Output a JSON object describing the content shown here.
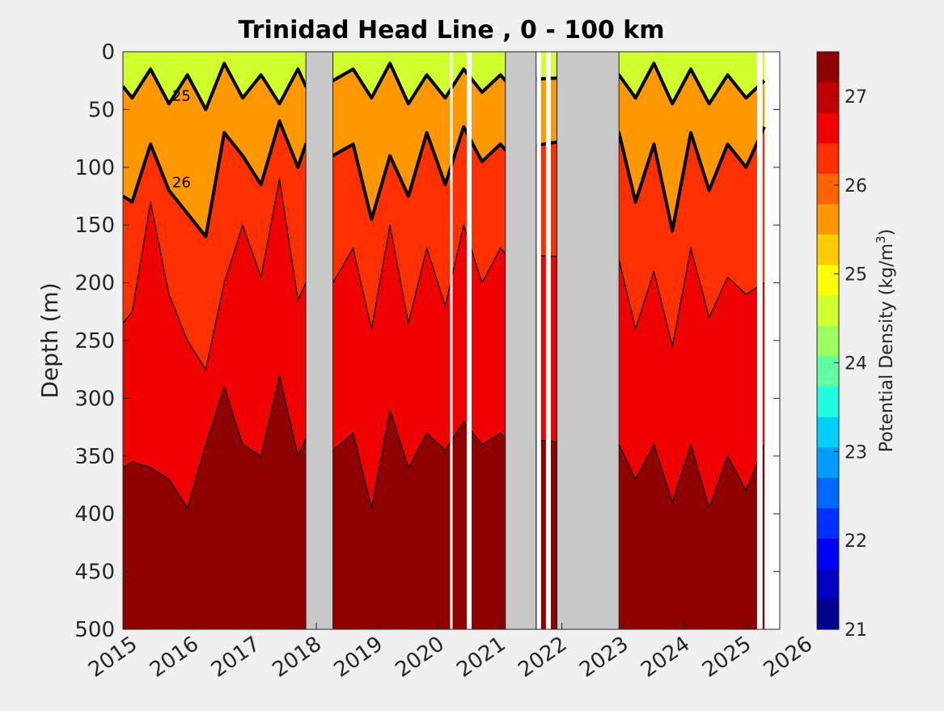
{
  "chart_data": {
    "type": "heatmap",
    "title": "Trinidad Head Line , 0 - 100 km",
    "xlabel": "",
    "ylabel": "Depth (m)",
    "xlim": [
      2014.85,
      2025.55
    ],
    "x_ticks": [
      2015,
      2016,
      2017,
      2018,
      2019,
      2020,
      2021,
      2022,
      2023,
      2024,
      2025,
      2026
    ],
    "x_tick_labels": [
      "2015",
      "2016",
      "2017",
      "2018",
      "2019",
      "2020",
      "2021",
      "2022",
      "2023",
      "2024",
      "2025",
      "2026"
    ],
    "ylim": [
      500,
      0
    ],
    "y_reversed": true,
    "y_ticks": [
      0,
      50,
      100,
      150,
      200,
      250,
      300,
      350,
      400,
      450,
      500
    ],
    "y_tick_labels": [
      "0",
      "50",
      "100",
      "150",
      "200",
      "250",
      "300",
      "350",
      "400",
      "450",
      "500"
    ],
    "colorbar": {
      "label": "Potential Density (kg/m",
      "label_superscript": "3",
      "label_close": ")",
      "range": [
        21,
        27.5
      ],
      "ticks": [
        21,
        22,
        23,
        24,
        25,
        26,
        27
      ],
      "tick_labels": [
        "21",
        "22",
        "23",
        "24",
        "25",
        "26",
        "27"
      ],
      "colormap": [
        "#00008f",
        "#0000c0",
        "#0000f5",
        "#0030ff",
        "#0068ff",
        "#009cff",
        "#00d0ff",
        "#20ffe0",
        "#60ffa0",
        "#9cff62",
        "#d0ff2e",
        "#ffff00",
        "#ffcc00",
        "#ff9800",
        "#ff6400",
        "#ff3000",
        "#f00000",
        "#c00000",
        "#8f0000"
      ]
    },
    "no_data_intervals": [
      [
        2017.83,
        2018.27
      ],
      [
        2021.08,
        2021.58
      ],
      [
        2021.92,
        2022.93
      ]
    ],
    "blank_intervals": [
      [
        2020.18,
        2020.22
      ],
      [
        2020.45,
        2020.53
      ],
      [
        2021.59,
        2021.66
      ],
      [
        2021.74,
        2021.82
      ],
      [
        2025.18,
        2025.27
      ],
      [
        2025.36,
        2025.55
      ]
    ],
    "isopycnals": [
      {
        "density": 25,
        "label": "25",
        "emphasis": "bold",
        "x": [
          2014.85,
          2015.0,
          2015.3,
          2015.6,
          2015.9,
          2016.2,
          2016.5,
          2016.8,
          2017.1,
          2017.4,
          2017.7,
          2017.83,
          2018.27,
          2018.6,
          2018.9,
          2019.2,
          2019.5,
          2019.8,
          2020.1,
          2020.4,
          2020.7,
          2021.0,
          2021.08,
          2022.93,
          2023.2,
          2023.5,
          2023.8,
          2024.1,
          2024.4,
          2024.7,
          2025.0,
          2025.3
        ],
        "y": [
          30,
          40,
          15,
          45,
          20,
          50,
          10,
          40,
          20,
          45,
          15,
          30,
          25,
          15,
          40,
          10,
          45,
          20,
          40,
          15,
          35,
          20,
          25,
          20,
          40,
          10,
          45,
          15,
          45,
          20,
          40,
          25
        ]
      },
      {
        "density": 26,
        "label": "26",
        "emphasis": "bold",
        "x": [
          2014.85,
          2015.0,
          2015.3,
          2015.6,
          2015.9,
          2016.2,
          2016.5,
          2016.8,
          2017.1,
          2017.4,
          2017.7,
          2017.83,
          2018.27,
          2018.6,
          2018.9,
          2019.2,
          2019.5,
          2019.8,
          2020.1,
          2020.4,
          2020.7,
          2021.0,
          2021.08,
          2022.93,
          2023.2,
          2023.5,
          2023.8,
          2024.1,
          2024.4,
          2024.7,
          2025.0,
          2025.3
        ],
        "y": [
          125,
          130,
          80,
          120,
          140,
          160,
          70,
          90,
          115,
          60,
          100,
          80,
          90,
          80,
          145,
          90,
          125,
          70,
          115,
          65,
          95,
          80,
          85,
          70,
          130,
          80,
          155,
          70,
          120,
          80,
          100,
          65
        ]
      },
      {
        "density": 26.5,
        "label": "",
        "emphasis": "thin",
        "x": [
          2014.85,
          2015.0,
          2015.3,
          2015.6,
          2015.9,
          2016.2,
          2016.5,
          2016.8,
          2017.1,
          2017.4,
          2017.7,
          2017.83,
          2018.27,
          2018.6,
          2018.9,
          2019.2,
          2019.5,
          2019.8,
          2020.1,
          2020.4,
          2020.7,
          2021.0,
          2021.08,
          2022.93,
          2023.2,
          2023.5,
          2023.8,
          2024.1,
          2024.4,
          2024.7,
          2025.0,
          2025.3
        ],
        "y": [
          235,
          225,
          130,
          210,
          250,
          275,
          200,
          150,
          195,
          110,
          215,
          200,
          200,
          170,
          240,
          150,
          235,
          170,
          220,
          150,
          200,
          170,
          175,
          180,
          240,
          190,
          255,
          170,
          230,
          195,
          210,
          200
        ]
      },
      {
        "density": 27,
        "label": "",
        "emphasis": "thin",
        "x": [
          2014.85,
          2015.0,
          2015.3,
          2015.6,
          2015.9,
          2016.2,
          2016.5,
          2016.8,
          2017.1,
          2017.4,
          2017.7,
          2017.83,
          2018.27,
          2018.6,
          2018.9,
          2019.2,
          2019.5,
          2019.8,
          2020.1,
          2020.4,
          2020.7,
          2021.0,
          2021.08,
          2022.93,
          2023.2,
          2023.5,
          2023.8,
          2024.1,
          2024.4,
          2024.7,
          2025.0,
          2025.3
        ],
        "y": [
          360,
          355,
          360,
          370,
          395,
          340,
          290,
          340,
          350,
          280,
          350,
          335,
          345,
          330,
          395,
          310,
          360,
          330,
          345,
          320,
          340,
          330,
          335,
          340,
          370,
          340,
          390,
          340,
          395,
          350,
          380,
          340
        ]
      }
    ]
  }
}
